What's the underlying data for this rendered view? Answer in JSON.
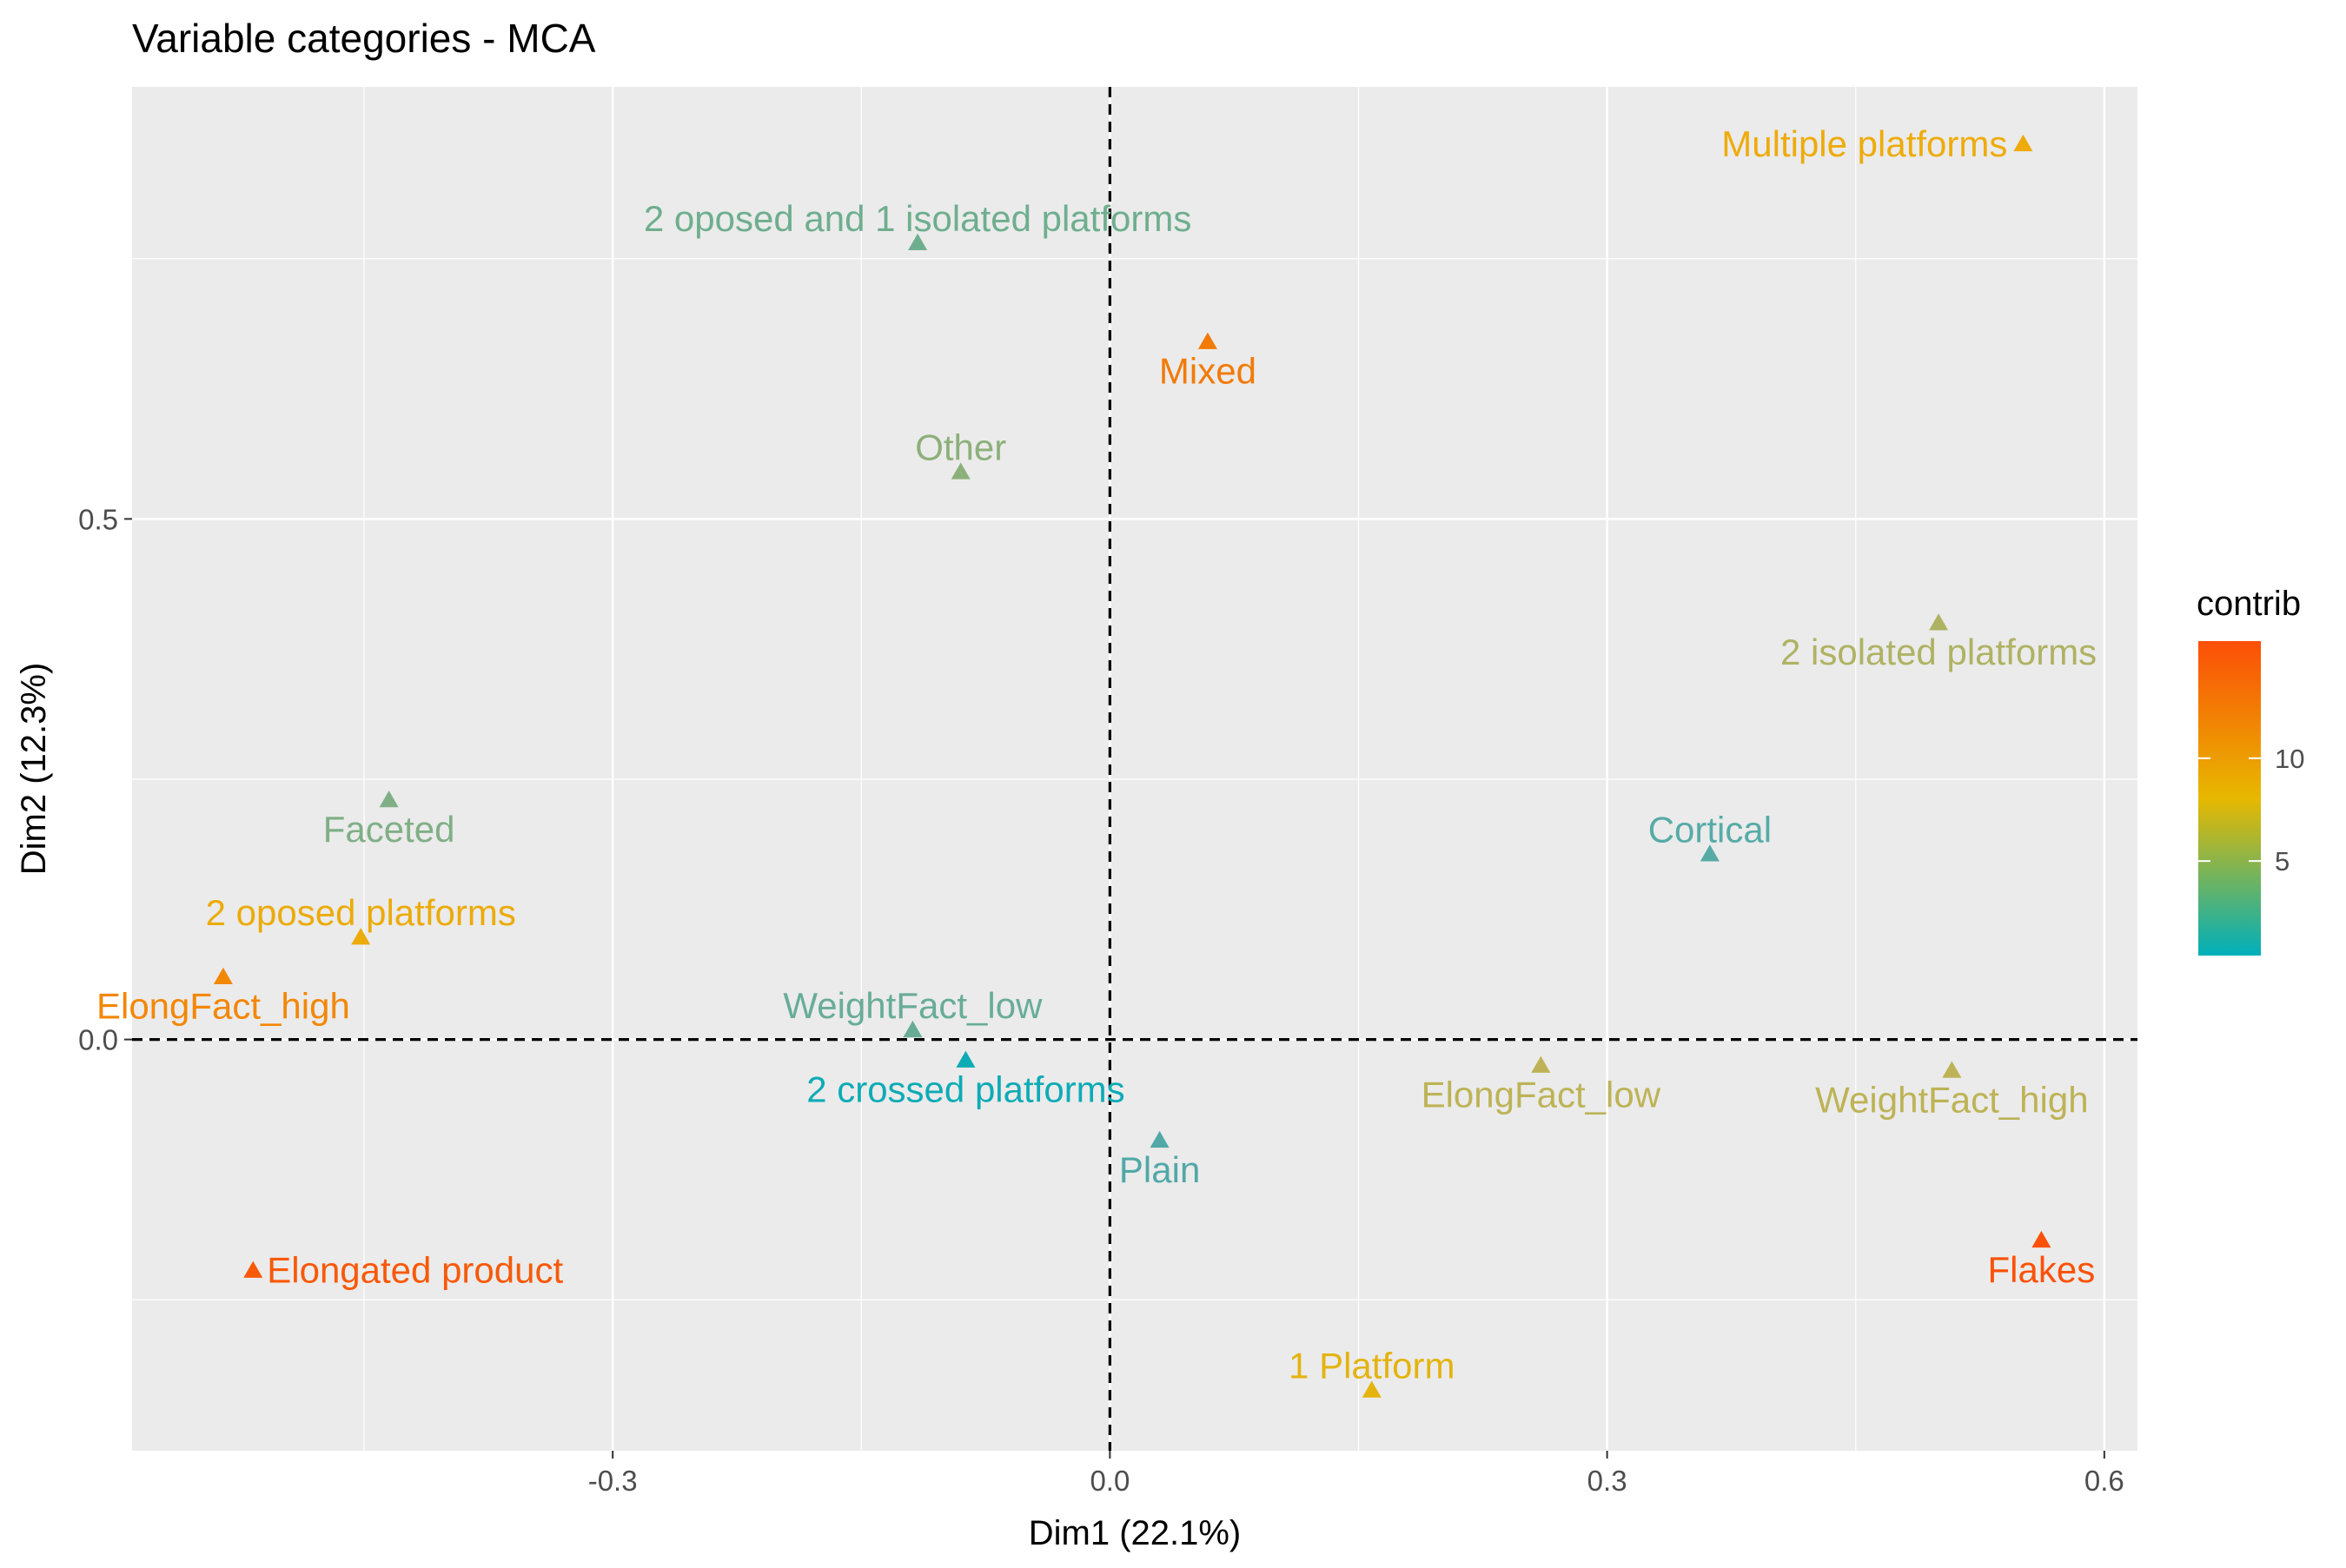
{
  "chart_data": {
    "type": "scatter",
    "title": "Variable categories - MCA",
    "xlabel": "Dim1 (22.1%)",
    "ylabel": "Dim2 (12.3%)",
    "xlim": [
      -0.59,
      0.62
    ],
    "ylim": [
      -0.395,
      0.915
    ],
    "x_ticks": [
      -0.3,
      0.0,
      0.3,
      0.6
    ],
    "x_tick_labels": [
      "-0.3",
      "0.0",
      "0.3",
      "0.6"
    ],
    "y_ticks": [
      0.0,
      0.5
    ],
    "y_tick_labels": [
      "0.0",
      "0.5"
    ],
    "grid": true,
    "reference_lines": {
      "x": 0,
      "y": 0,
      "style": "dashed"
    },
    "marker": "triangle",
    "legend": {
      "title": "contrib",
      "placement": "right",
      "range": [
        0.4,
        15.7
      ],
      "ticks": [
        5,
        10
      ],
      "tick_labels": [
        "5",
        "10"
      ],
      "color_low": "#00AFBB",
      "color_mid": "#E7B800",
      "color_high": "#FC4E07"
    },
    "points": [
      {
        "label": "Multiple platforms",
        "x": 0.551,
        "y": 0.86,
        "contrib": 9.5,
        "color": "#EEAB0A",
        "label_pos": "left"
      },
      {
        "label": "2 oposed and 1 isolated platforms",
        "x": -0.116,
        "y": 0.765,
        "contrib": 2.9,
        "color": "#6EAE8E",
        "label_pos": "above"
      },
      {
        "label": "Mixed",
        "x": 0.059,
        "y": 0.67,
        "contrib": 13.8,
        "color": "#F27A06",
        "label_pos": "below"
      },
      {
        "label": "Other",
        "x": -0.09,
        "y": 0.545,
        "contrib": 3.7,
        "color": "#8CB07A",
        "label_pos": "above"
      },
      {
        "label": "2 isolated platforms",
        "x": 0.5,
        "y": 0.4,
        "contrib": 5.5,
        "color": "#AFB263",
        "label_pos": "below"
      },
      {
        "label": "Faceted",
        "x": -0.435,
        "y": 0.23,
        "contrib": 3.4,
        "color": "#80AF86",
        "label_pos": "below"
      },
      {
        "label": "Cortical",
        "x": 0.362,
        "y": 0.178,
        "contrib": 2.2,
        "color": "#56ABA6",
        "label_pos": "above"
      },
      {
        "label": "2 oposed platforms",
        "x": -0.452,
        "y": 0.098,
        "contrib": 9.5,
        "color": "#EBAB08",
        "label_pos": "above"
      },
      {
        "label": "ElongFact_high",
        "x": -0.535,
        "y": 0.06,
        "contrib": 12.5,
        "color": "#F38706",
        "label_pos": "below"
      },
      {
        "label": "WeightFact_low",
        "x": -0.119,
        "y": 0.009,
        "contrib": 2.6,
        "color": "#68AC98",
        "label_pos": "above"
      },
      {
        "label": "2 crossed platforms",
        "x": -0.087,
        "y": -0.02,
        "contrib": 0.6,
        "color": "#0DABB6",
        "label_pos": "below"
      },
      {
        "label": "ElongFact_low",
        "x": 0.26,
        "y": -0.025,
        "contrib": 6.0,
        "color": "#BDB356",
        "label_pos": "below"
      },
      {
        "label": "WeightFact_high",
        "x": 0.508,
        "y": -0.03,
        "contrib": 6.0,
        "color": "#BDB356",
        "label_pos": "below"
      },
      {
        "label": "Plain",
        "x": 0.03,
        "y": -0.097,
        "contrib": 2.0,
        "color": "#51A8A7",
        "label_pos": "below"
      },
      {
        "label": "Flakes",
        "x": 0.562,
        "y": -0.193,
        "contrib": 15.5,
        "color": "#FB5107",
        "label_pos": "below"
      },
      {
        "label": "Elongated product",
        "x": -0.517,
        "y": -0.222,
        "contrib": 15.0,
        "color": "#F85907",
        "label_pos": "right"
      },
      {
        "label": "1 Platform",
        "x": 0.158,
        "y": -0.337,
        "contrib": 8.5,
        "color": "#E4B30F",
        "label_pos": "above"
      }
    ]
  }
}
